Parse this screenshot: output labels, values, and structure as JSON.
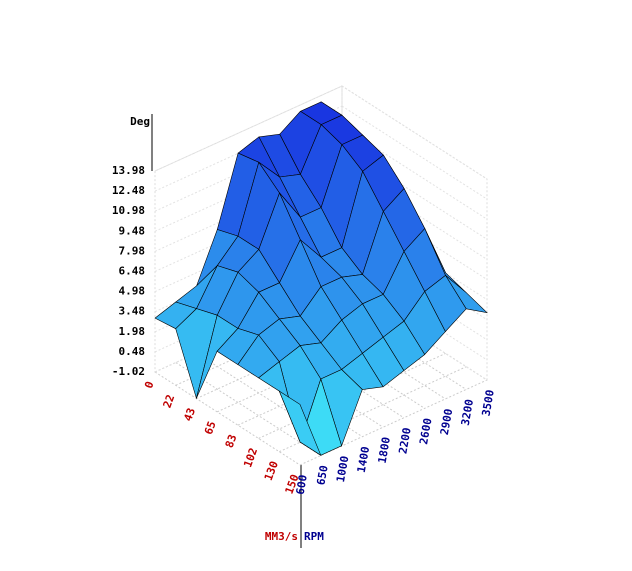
{
  "chart_data": {
    "type": "surface",
    "z_label": "Deg",
    "x_label": "MM3/s",
    "y_label": "RPM",
    "x_categories": [
      0,
      22,
      43,
      65,
      83,
      102,
      130,
      150
    ],
    "y_categories": [
      600,
      650,
      1000,
      1400,
      1800,
      2200,
      2600,
      2900,
      3200,
      3500
    ],
    "x_color": "#c00000",
    "y_color": "#000090",
    "zlim": [
      -1.02,
      13.98
    ],
    "zticks": [
      -1.02,
      0.48,
      1.98,
      3.48,
      4.98,
      6.48,
      7.98,
      9.48,
      10.98,
      12.48,
      13.98
    ],
    "low_color": "#40e8f8",
    "high_color": "#1830e0",
    "values": [
      [
        3.0,
        3.5,
        4.0,
        7.5,
        12.5,
        13.0,
        12.5,
        13.5,
        13.5,
        6.5
      ],
      [
        3.2,
        4.0,
        6.5,
        8.0,
        12.8,
        11.0,
        10.5,
        13.5,
        13.5,
        6.5
      ],
      [
        -1.0,
        4.5,
        7.0,
        8.0,
        11.5,
        9.0,
        9.0,
        13.0,
        13.0,
        6.0
      ],
      [
        3.5,
        4.5,
        6.5,
        6.5,
        9.0,
        7.0,
        7.0,
        12.0,
        12.5,
        6.0
      ],
      [
        3.5,
        5.0,
        5.5,
        5.0,
        6.5,
        6.5,
        6.0,
        10.0,
        11.0,
        5.5
      ],
      [
        3.5,
        4.0,
        4.5,
        4.0,
        5.0,
        5.5,
        5.5,
        8.0,
        9.0,
        5.0
      ],
      [
        3.5,
        -1.0,
        3.0,
        3.0,
        3.5,
        4.0,
        4.5,
        6.0,
        6.5,
        4.5
      ],
      [
        3.5,
        -1.0,
        -1.0,
        2.5,
        2.0,
        2.5,
        3.0,
        4.0,
        5.0,
        4.0
      ]
    ]
  }
}
